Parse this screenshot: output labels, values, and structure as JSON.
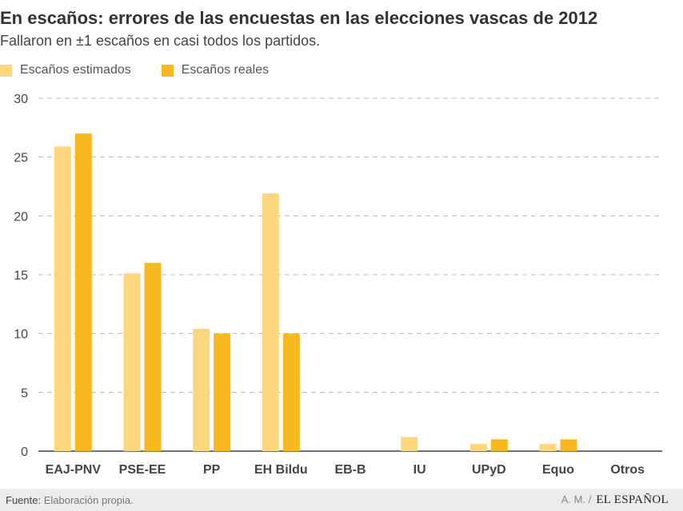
{
  "header": {
    "title": "En escaños: errores de las encuestas en las elecciones vascas de 2012",
    "subtitle": "Fallaron en ±1 escaños en casi todos los partidos."
  },
  "colors": {
    "estimated": "#fcd77f",
    "real": "#f8b81f",
    "grid": "#bbbbbb",
    "axis": "#444444"
  },
  "chart_data": {
    "type": "bar",
    "title": "En escaños: errores de las encuestas en las elecciones vascas de 2012",
    "subtitle": "Fallaron en ±1 escaños en casi todos los partidos.",
    "xlabel": "",
    "ylabel": "",
    "ylim": [
      0,
      30
    ],
    "yticks": [
      0,
      5,
      10,
      15,
      20,
      25,
      30
    ],
    "grid": true,
    "legend_position": "top-left",
    "categories": [
      "EAJ-PNV",
      "PSE-EE",
      "PP",
      "EH Bildu",
      "EB-B",
      "IU",
      "UPyD",
      "Equo",
      "Otros"
    ],
    "series": [
      {
        "name": "Escaños estimados",
        "color": "#fcd77f",
        "values": [
          25.9,
          15.1,
          10.4,
          21.9,
          0,
          1.2,
          0.6,
          0.6,
          0
        ]
      },
      {
        "name": "Escaños reales",
        "color": "#f8b81f",
        "values": [
          27,
          16,
          10,
          10,
          0,
          0,
          1,
          1,
          0
        ]
      }
    ]
  },
  "footer": {
    "source_label": "Fuente:",
    "source_text": "Elaboración propia.",
    "author": "A. M. /",
    "brand": "EL ESPAÑOL"
  }
}
